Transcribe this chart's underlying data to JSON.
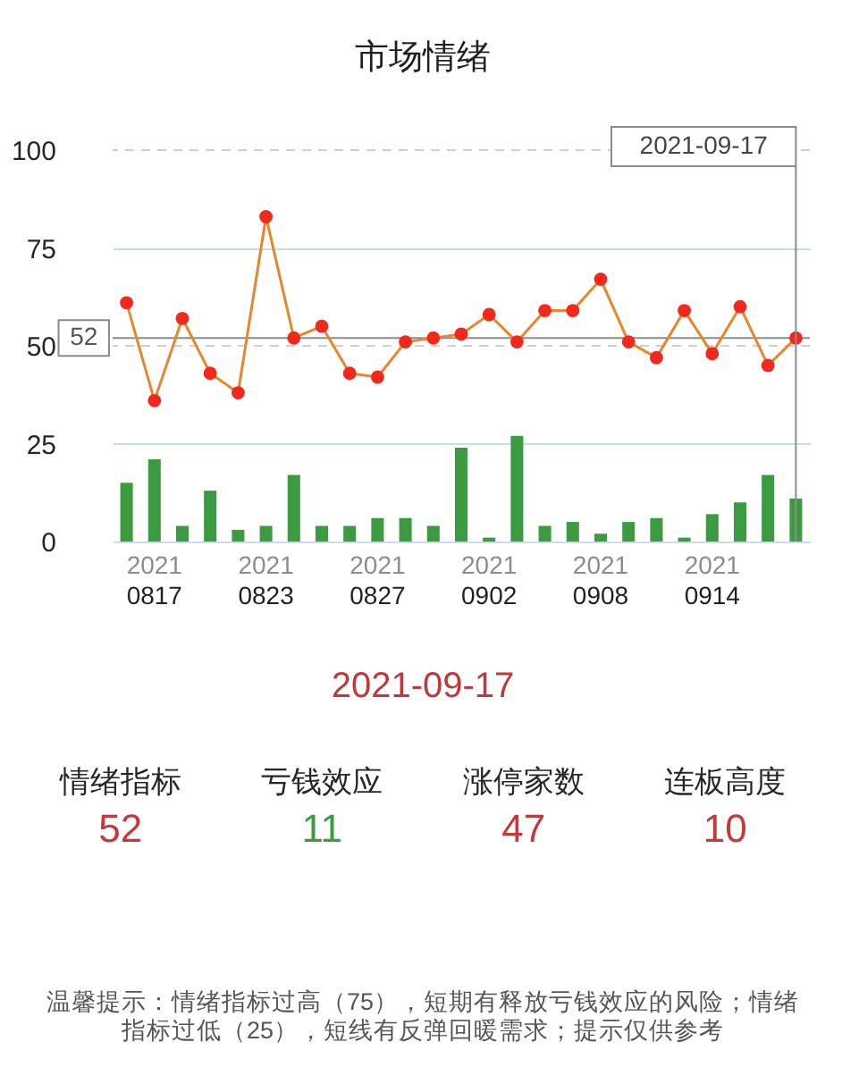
{
  "chart_data": [
    {
      "type": "bar",
      "title": "市场情绪",
      "categories": [
        null,
        "2021\n0817",
        null,
        null,
        null,
        "2021\n0823",
        null,
        null,
        null,
        "2021\n0827",
        null,
        null,
        null,
        "2021\n0902",
        null,
        null,
        null,
        "2021\n0908",
        null,
        null,
        null,
        "2021\n0914",
        null,
        null,
        null
      ],
      "series": [
        {
          "type": "bar",
          "color": "#3c9b40",
          "values": [
            15,
            21,
            4,
            13,
            3,
            4,
            17,
            4,
            4,
            6,
            6,
            4,
            24,
            1,
            27,
            4,
            5,
            2,
            5,
            6,
            1,
            7,
            10,
            17,
            11
          ]
        },
        {
          "type": "line",
          "color": "#e8862b",
          "colors": [
            "#f2281d",
            "#f2281d",
            "#f2281d",
            "#f2281d",
            "#f2281d",
            "#f2281d",
            "#f2281d",
            "#f2281d",
            "#f2281d",
            "#f2281d",
            "#f2281d",
            "#f2281d",
            "#f2281d",
            "#f2281d",
            "#f2281d",
            "#f2281d",
            "#f2281d",
            "#f2281d",
            "#f2281d",
            "#f2281d",
            "#f2281d",
            "#f2281d",
            "#f2281d",
            "#f2281d",
            "#f2281d"
          ],
          "values": [
            61,
            36,
            57,
            43,
            38,
            83,
            52,
            55,
            43,
            42,
            51,
            52,
            53,
            58,
            51,
            59,
            59,
            67,
            51,
            47,
            59,
            48,
            60,
            45,
            52
          ]
        }
      ],
      "ylim": [
        0,
        100
      ],
      "yticks": [
        0,
        25,
        50,
        75,
        100
      ],
      "grid": "y",
      "marker": "circle",
      "line_style": "solid",
      "ref_lines": [
        {
          "axis": "y",
          "value": 100,
          "color": "#cfcfcf",
          "line_style": "dashed"
        },
        {
          "axis": "y",
          "value": 50,
          "color": "#cfcfcf",
          "line_style": "dashed"
        },
        {
          "axis": "y",
          "value": 52,
          "label": "52",
          "color": "#8c8c8c",
          "line_style": "solid"
        }
      ],
      "annotations": [
        "2021-09-17"
      ]
    },
    {
      "type": "other",
      "title": "2021-09-17",
      "categories": [
        "情绪指标",
        "亏钱效应",
        "涨停家数",
        "连板高度"
      ],
      "values": [
        52,
        11,
        47,
        10
      ],
      "colors": [
        "#c8373a",
        "#3c9b40",
        "#c8373a",
        "#c8373a"
      ],
      "data_labels": true,
      "annotations": [
        "温馨提示：情绪指标过高（75），短期有释放亏钱效应的风险；情绪指标过低（25），短线有反弹回暖需求；提示仅供参考"
      ]
    }
  ]
}
